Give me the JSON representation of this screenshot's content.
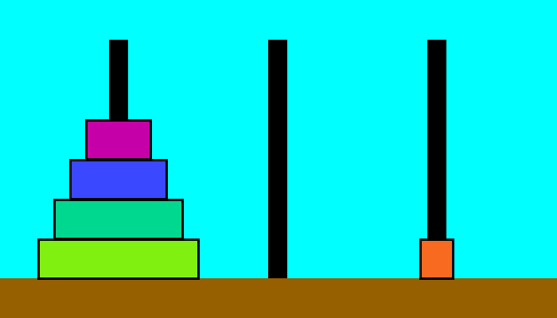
{
  "game": {
    "name": "Tower of Hanoi",
    "colors": {
      "background": "#00ffff",
      "ground": "#965f00",
      "peg": "#000000",
      "disk_outline": "#000000"
    },
    "pegs": [
      {
        "id": "left",
        "disks": [
          {
            "size": 5,
            "color": "#80f010"
          },
          {
            "size": 4,
            "color": "#00d890"
          },
          {
            "size": 3,
            "color": "#3a48ff"
          },
          {
            "size": 2,
            "color": "#c600a8"
          }
        ]
      },
      {
        "id": "middle",
        "disks": []
      },
      {
        "id": "right",
        "disks": [
          {
            "size": 1,
            "color": "#f86a20"
          }
        ]
      }
    ]
  }
}
